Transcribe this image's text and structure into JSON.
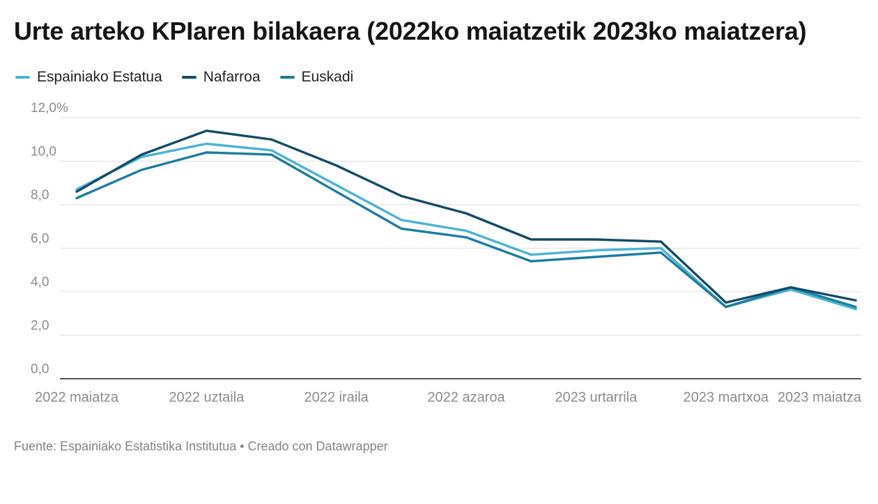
{
  "page": {
    "title": "Urte arteko KPIaren bilakaera (2022ko maiatzetik 2023ko maiatzera)",
    "footer": "Fuente: Espainiako Estatistika Institutua • Creado con Datawrapper"
  },
  "chart_data": {
    "type": "line",
    "title": "Urte arteko KPIaren bilakaera (2022ko maiatzetik 2023ko maiatzera)",
    "unit": "%",
    "grid": true,
    "legend_position": "top",
    "ylim": [
      0,
      12
    ],
    "x": [
      "2022-05",
      "2022-06",
      "2022-07",
      "2022-08",
      "2022-09",
      "2022-10",
      "2022-11",
      "2022-12",
      "2023-01",
      "2023-02",
      "2023-03",
      "2023-04",
      "2023-05"
    ],
    "x_ticks": [
      {
        "index": 0,
        "label": "2022 maiatza"
      },
      {
        "index": 2,
        "label": "2022 uztaila"
      },
      {
        "index": 4,
        "label": "2022 iraila"
      },
      {
        "index": 6,
        "label": "2022 azaroa"
      },
      {
        "index": 8,
        "label": "2023 urtarrila"
      },
      {
        "index": 10,
        "label": "2023 martxoa"
      },
      {
        "index": 12,
        "label": "2023 maiatza"
      }
    ],
    "y_ticks": [
      {
        "value": 12,
        "label": "12,0%"
      },
      {
        "value": 10,
        "label": "10,0"
      },
      {
        "value": 8,
        "label": "8,0"
      },
      {
        "value": 6,
        "label": "6,0"
      },
      {
        "value": 4,
        "label": "4,0"
      },
      {
        "value": 2,
        "label": "2,0"
      },
      {
        "value": 0,
        "label": "0,0"
      }
    ],
    "series": [
      {
        "name": "Espainiako Estatua",
        "color": "#4db3d4",
        "values": [
          8.7,
          10.2,
          10.8,
          10.5,
          8.9,
          7.3,
          6.8,
          5.7,
          5.9,
          6.0,
          3.3,
          4.1,
          3.2
        ]
      },
      {
        "name": "Nafarroa",
        "color": "#134b68",
        "values": [
          8.6,
          10.3,
          11.4,
          11.0,
          9.8,
          8.4,
          7.6,
          6.4,
          6.4,
          6.3,
          3.5,
          4.2,
          3.6
        ]
      },
      {
        "name": "Euskadi",
        "color": "#1d7ca3",
        "values": [
          8.3,
          9.6,
          10.4,
          10.3,
          8.6,
          6.9,
          6.5,
          5.4,
          5.6,
          5.8,
          3.3,
          4.2,
          3.3
        ]
      }
    ]
  }
}
